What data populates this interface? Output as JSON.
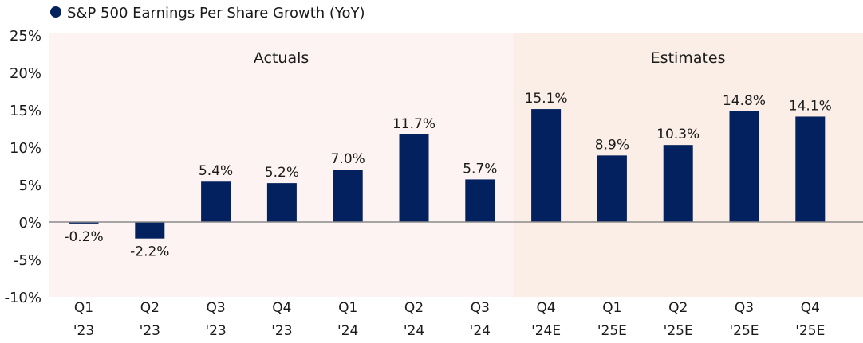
{
  "chart_data": {
    "type": "bar",
    "legend": {
      "label": "S&P 500 Earnings Per Share Growth (YoY)",
      "position": "top-left"
    },
    "categories": [
      [
        "Q1",
        "'23"
      ],
      [
        "Q2",
        "'23"
      ],
      [
        "Q3",
        "'23"
      ],
      [
        "Q4",
        "'23"
      ],
      [
        "Q1",
        "'24"
      ],
      [
        "Q2",
        "'24"
      ],
      [
        "Q3",
        "'24"
      ],
      [
        "Q4",
        "'24E"
      ],
      [
        "Q1",
        "'25E"
      ],
      [
        "Q2",
        "'25E"
      ],
      [
        "Q3",
        "'25E"
      ],
      [
        "Q4",
        "'25E"
      ]
    ],
    "values": [
      -0.2,
      -2.2,
      5.4,
      5.2,
      7.0,
      11.7,
      5.7,
      15.1,
      8.9,
      10.3,
      14.8,
      14.1
    ],
    "data_labels": [
      "-0.2%",
      "-2.2%",
      "5.4%",
      "5.2%",
      "7.0%",
      "11.7%",
      "5.7%",
      "15.1%",
      "8.9%",
      "10.3%",
      "14.8%",
      "14.1%"
    ],
    "ylim": [
      -10,
      25
    ],
    "yticks": [
      "25%",
      "20%",
      "15%",
      "10%",
      "5%",
      "0%",
      "-5%",
      "-10%"
    ],
    "ytick_values": [
      25,
      20,
      15,
      10,
      5,
      0,
      -5,
      -10
    ],
    "regions": [
      {
        "label": "Actuals",
        "from_index": 0,
        "to_index": 6,
        "color": "#fcf3f2"
      },
      {
        "label": "Estimates",
        "from_index": 7,
        "to_index": 11,
        "color": "#faeee6"
      }
    ],
    "bar_color": "#03215e",
    "grid": false
  }
}
